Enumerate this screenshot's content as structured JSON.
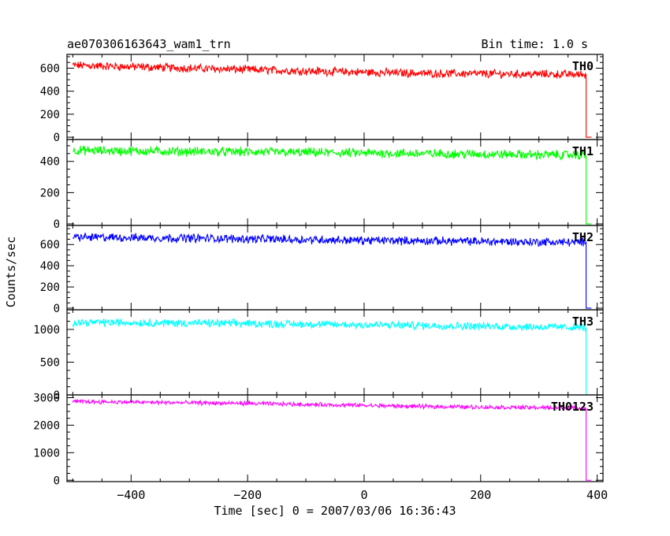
{
  "chart_data": {
    "type": "line",
    "title": "ae070306163643_wam1_trn",
    "subtitle": "Bin time: 1.0 s",
    "xlabel": "Time [sec] 0 = 2007/03/06 16:36:43",
    "ylabel": "Counts/sec",
    "xlim": [
      -510,
      410
    ],
    "x_ticks": [
      -400,
      -200,
      0,
      200,
      400
    ],
    "x_tick_labels": [
      "−400",
      "−200",
      "0",
      "200",
      "400"
    ],
    "grid": false,
    "legend": "none",
    "panels": [
      {
        "name": "TH0",
        "color": "#ff0000",
        "ylim": [
          -20,
          720
        ],
        "y_ticks": [
          0,
          200,
          400,
          600
        ],
        "y_tick_labels": [
          "0",
          "200",
          "400",
          "600"
        ],
        "x_range": [
          -500,
          380
        ],
        "trend": [
          [
            -500,
            625
          ],
          [
            -300,
            600
          ],
          [
            -100,
            575
          ],
          [
            100,
            555
          ],
          [
            380,
            545
          ]
        ],
        "noise_amplitude": 55,
        "drop_to": 0
      },
      {
        "name": "TH1",
        "color": "#00ff00",
        "ylim": [
          -10,
          540
        ],
        "y_ticks": [
          0,
          200,
          400
        ],
        "y_tick_labels": [
          "0",
          "200",
          "400"
        ],
        "x_range": [
          -500,
          380
        ],
        "trend": [
          [
            -500,
            470
          ],
          [
            -200,
            460
          ],
          [
            100,
            450
          ],
          [
            380,
            440
          ]
        ],
        "noise_amplitude": 45,
        "drop_to": 0
      },
      {
        "name": "TH2",
        "color": "#0000ff",
        "ylim": [
          -15,
          780
        ],
        "y_ticks": [
          0,
          200,
          400,
          600
        ],
        "y_tick_labels": [
          "0",
          "200",
          "400",
          "600"
        ],
        "x_range": [
          -500,
          380
        ],
        "trend": [
          [
            -500,
            670
          ],
          [
            -300,
            660
          ],
          [
            0,
            640
          ],
          [
            380,
            620
          ]
        ],
        "noise_amplitude": 60,
        "drop_to": 0
      },
      {
        "name": "TH3",
        "color": "#00ffff",
        "ylim": [
          0,
          1300
        ],
        "y_ticks": [
          0,
          500,
          1000
        ],
        "y_tick_labels": [
          "0",
          "500",
          "1000"
        ],
        "x_range": [
          -500,
          380
        ],
        "trend": [
          [
            -500,
            1110
          ],
          [
            -200,
            1090
          ],
          [
            100,
            1060
          ],
          [
            380,
            1030
          ]
        ],
        "noise_amplitude": 90,
        "drop_to": 0
      },
      {
        "name": "TH0123",
        "color": "#ff00ff",
        "ylim": [
          -50,
          3100
        ],
        "y_ticks": [
          0,
          1000,
          2000,
          3000
        ],
        "y_tick_labels": [
          "0",
          "1000",
          "2000",
          "3000"
        ],
        "x_range": [
          -500,
          380
        ],
        "trend": [
          [
            -500,
            2860
          ],
          [
            -200,
            2790
          ],
          [
            100,
            2680
          ],
          [
            380,
            2620
          ]
        ],
        "noise_amplitude": 110,
        "drop_to": 0
      }
    ]
  }
}
